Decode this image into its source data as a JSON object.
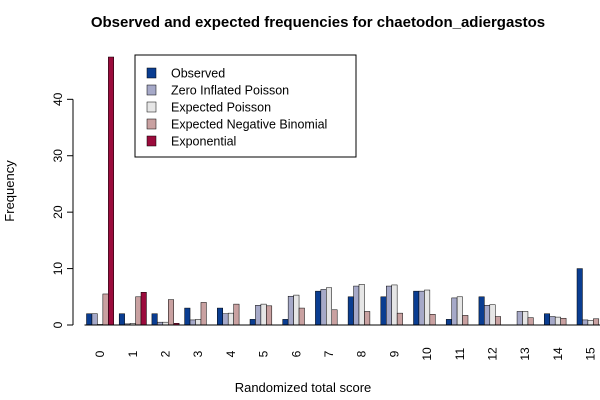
{
  "chart_data": {
    "type": "bar",
    "title": "Observed and expected frequencies for chaetodon_adiergastos",
    "xlabel": "Randomized total score",
    "ylabel": "Frequency",
    "categories": [
      "0",
      "1",
      "2",
      "3",
      "4",
      "5",
      "6",
      "7",
      "8",
      "9",
      "10",
      "11",
      "12",
      "13",
      "14",
      "15"
    ],
    "ylim": [
      0,
      47.5
    ],
    "yticks": [
      0,
      10,
      20,
      30,
      40
    ],
    "legend_position": "top-left",
    "series": [
      {
        "name": "Observed",
        "color": "#0a3d91",
        "values": [
          2,
          2,
          2,
          3,
          3,
          1,
          1,
          6,
          5,
          5,
          6,
          1,
          5,
          0,
          2,
          10
        ]
      },
      {
        "name": "Zero Inflated Poisson",
        "color": "#a6a9c8",
        "values": [
          2,
          0.2,
          0.5,
          0.9,
          2,
          3.5,
          5.1,
          6.3,
          6.9,
          6.9,
          6,
          4.8,
          3.5,
          2.4,
          1.5,
          0.9
        ]
      },
      {
        "name": "Expected Poisson",
        "color": "#e6e6e6",
        "values": [
          0.1,
          0.3,
          0.5,
          1.0,
          2.1,
          3.7,
          5.3,
          6.6,
          7.2,
          7.1,
          6.2,
          5.0,
          3.6,
          2.4,
          1.4,
          0.8
        ]
      },
      {
        "name": "Expected Negative Binomial",
        "color": "#c9a1a1",
        "values": [
          5.5,
          5,
          4.5,
          4,
          3.7,
          3.4,
          3,
          2.7,
          2.4,
          2.1,
          1.9,
          1.7,
          1.5,
          1.3,
          1.2,
          1.1
        ]
      },
      {
        "name": "Exponential",
        "color": "#9b0b3c",
        "values": [
          47.5,
          5.8,
          0.3,
          0,
          0,
          0,
          0,
          0,
          0,
          0,
          0,
          0,
          0,
          0,
          0,
          0
        ]
      }
    ]
  }
}
